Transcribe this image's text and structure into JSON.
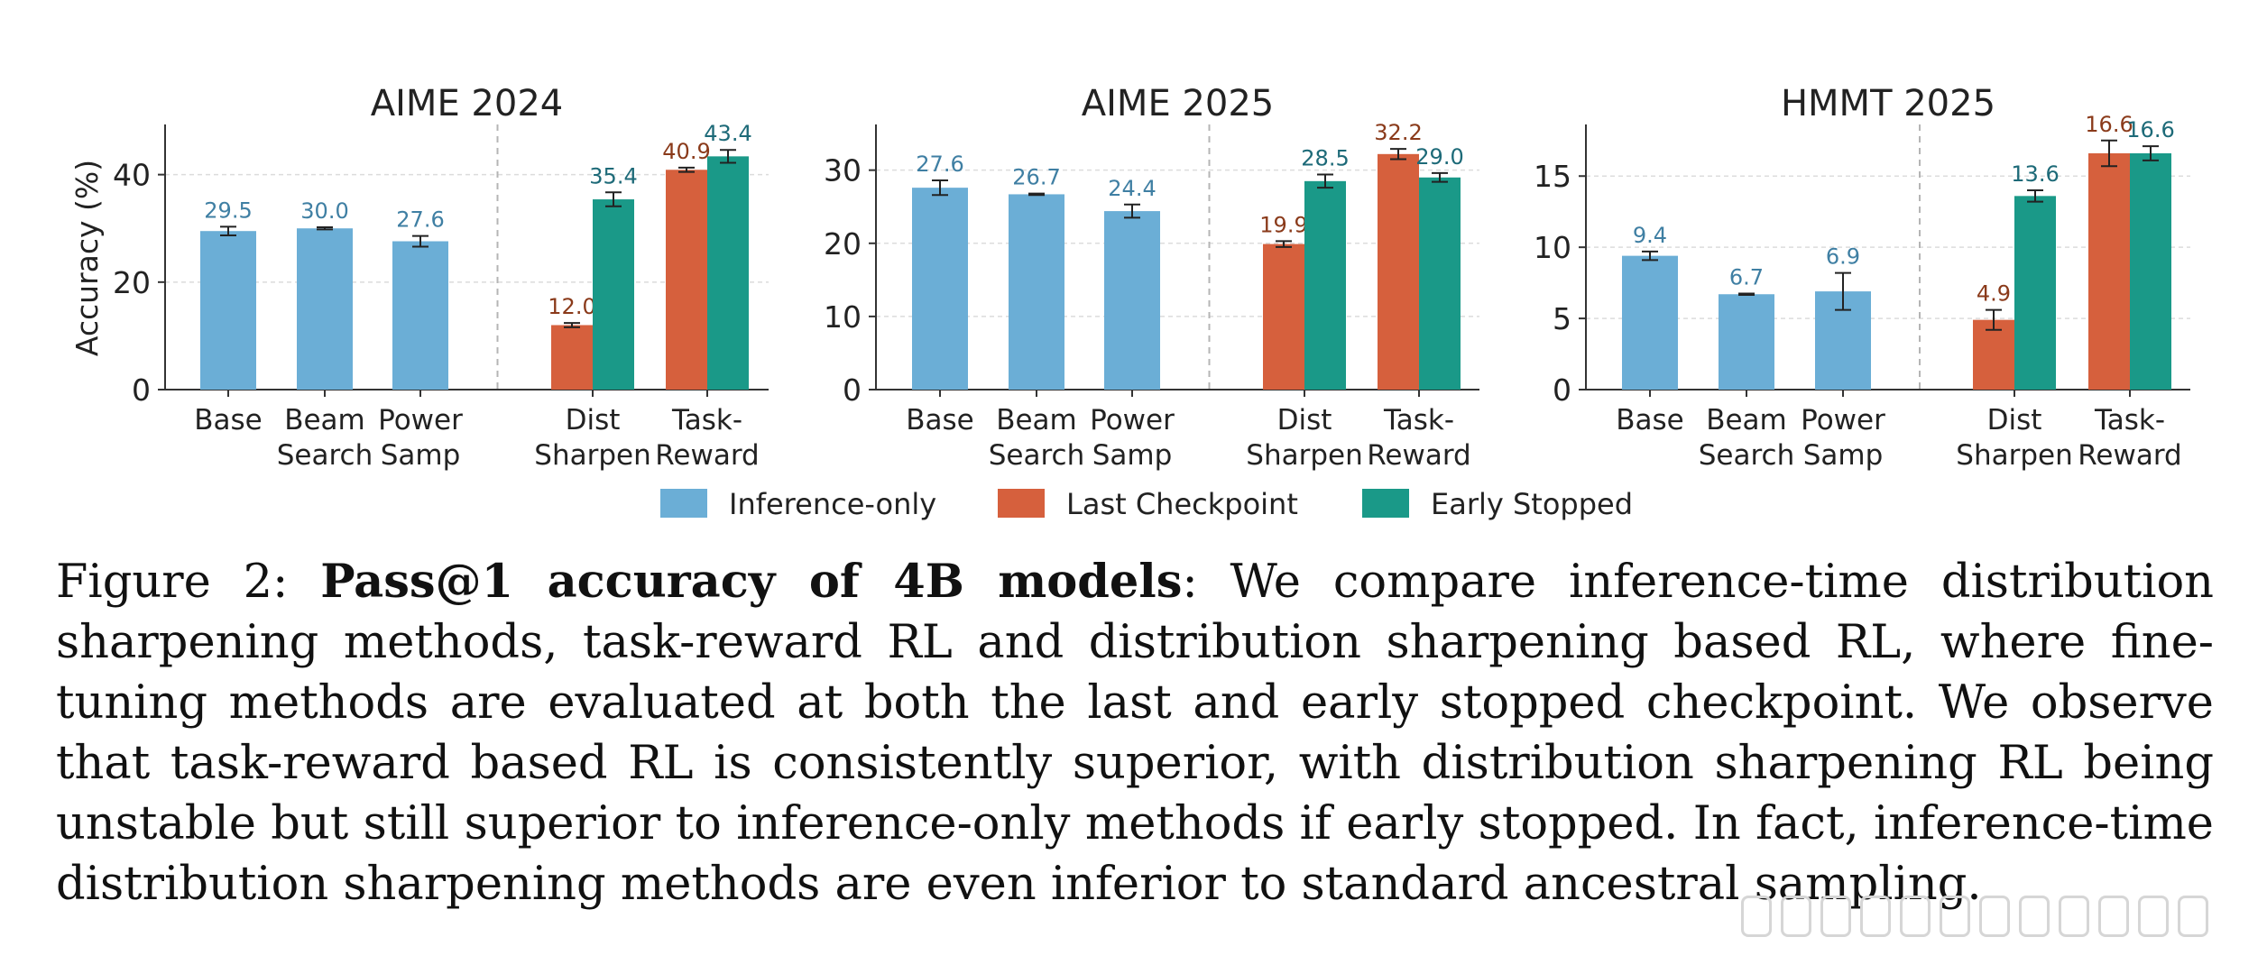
{
  "colors": {
    "inference": "#6baed6",
    "last": "#d6603d",
    "early": "#1a9988",
    "inference_text": "#3f7fa3",
    "last_text": "#8a3a1a",
    "early_text": "#1d6a78"
  },
  "legend": [
    {
      "name": "Inference-only",
      "color_key": "inference"
    },
    {
      "name": "Last Checkpoint",
      "color_key": "last"
    },
    {
      "name": "Early Stopped",
      "color_key": "early"
    }
  ],
  "chart_data": [
    {
      "type": "bar",
      "title": "AIME 2024",
      "ylabel": "Accuracy (%)",
      "ylim": [
        0,
        49
      ],
      "yticks": [
        0,
        20,
        40
      ],
      "categories": [
        [
          "Base"
        ],
        [
          "Beam",
          "Search"
        ],
        [
          "Power",
          "Samp"
        ],
        [
          "Dist",
          "Sharpen"
        ],
        [
          "Task-",
          "Reward"
        ]
      ],
      "bars": [
        {
          "group": 0,
          "series": "inference",
          "value": 29.5,
          "label": "29.5",
          "err": 0.8
        },
        {
          "group": 1,
          "series": "inference",
          "value": 30.0,
          "label": "30.0",
          "err": 0.2
        },
        {
          "group": 2,
          "series": "inference",
          "value": 27.6,
          "label": "27.6",
          "err": 1.0
        },
        {
          "group": 3,
          "series": "last",
          "value": 12.0,
          "label": "12.0",
          "err": 0.4
        },
        {
          "group": 3,
          "series": "early",
          "value": 35.4,
          "label": "35.4",
          "err": 1.3
        },
        {
          "group": 4,
          "series": "last",
          "value": 40.9,
          "label": "40.9",
          "err": 0.4
        },
        {
          "group": 4,
          "series": "early",
          "value": 43.4,
          "label": "43.4",
          "err": 1.2
        }
      ]
    },
    {
      "type": "bar",
      "title": "AIME 2025",
      "ylabel": "",
      "ylim": [
        0,
        36
      ],
      "yticks": [
        0,
        10,
        20,
        30
      ],
      "categories": [
        [
          "Base"
        ],
        [
          "Beam",
          "Search"
        ],
        [
          "Power",
          "Samp"
        ],
        [
          "Dist",
          "Sharpen"
        ],
        [
          "Task-",
          "Reward"
        ]
      ],
      "bars": [
        {
          "group": 0,
          "series": "inference",
          "value": 27.6,
          "label": "27.6",
          "err": 1.0
        },
        {
          "group": 1,
          "series": "inference",
          "value": 26.7,
          "label": "26.7",
          "err": 0.1
        },
        {
          "group": 2,
          "series": "inference",
          "value": 24.4,
          "label": "24.4",
          "err": 0.9
        },
        {
          "group": 3,
          "series": "last",
          "value": 19.9,
          "label": "19.9",
          "err": 0.4
        },
        {
          "group": 3,
          "series": "early",
          "value": 28.5,
          "label": "28.5",
          "err": 0.9
        },
        {
          "group": 4,
          "series": "last",
          "value": 32.2,
          "label": "32.2",
          "err": 0.7
        },
        {
          "group": 4,
          "series": "early",
          "value": 29.0,
          "label": "29.0",
          "err": 0.6
        }
      ]
    },
    {
      "type": "bar",
      "title": "HMMT 2025",
      "ylabel": "",
      "ylim": [
        0,
        18.5
      ],
      "yticks": [
        0,
        5,
        10,
        15
      ],
      "categories": [
        [
          "Base"
        ],
        [
          "Beam",
          "Search"
        ],
        [
          "Power",
          "Samp"
        ],
        [
          "Dist",
          "Sharpen"
        ],
        [
          "Task-",
          "Reward"
        ]
      ],
      "bars": [
        {
          "group": 0,
          "series": "inference",
          "value": 9.4,
          "label": "9.4",
          "err": 0.3
        },
        {
          "group": 1,
          "series": "inference",
          "value": 6.7,
          "label": "6.7",
          "err": 0.05
        },
        {
          "group": 2,
          "series": "inference",
          "value": 6.9,
          "label": "6.9",
          "err": 1.3
        },
        {
          "group": 3,
          "series": "last",
          "value": 4.9,
          "label": "4.9",
          "err": 0.7
        },
        {
          "group": 3,
          "series": "early",
          "value": 13.6,
          "label": "13.6",
          "err": 0.4
        },
        {
          "group": 4,
          "series": "last",
          "value": 16.6,
          "label": "16.6",
          "err": 0.9
        },
        {
          "group": 4,
          "series": "early",
          "value": 16.6,
          "label": "16.6",
          "err": 0.5
        }
      ]
    }
  ],
  "caption": {
    "prefix": "Figure 2: ",
    "bold": "Pass@1 accuracy of 4B models",
    "body": ": We compare inference-time distribution sharpening methods, task-reward RL and distribution sharpening based RL, where fine-tuning methods are evaluated at both the last and early stopped checkpoint. We observe that task-reward based RL is consistently superior, with distribution sharpening RL being unstable but still superior to inference-only methods if early stopped. In fact, inference-time distribution sharpening methods are even inferior to standard ancestral sampling."
  }
}
